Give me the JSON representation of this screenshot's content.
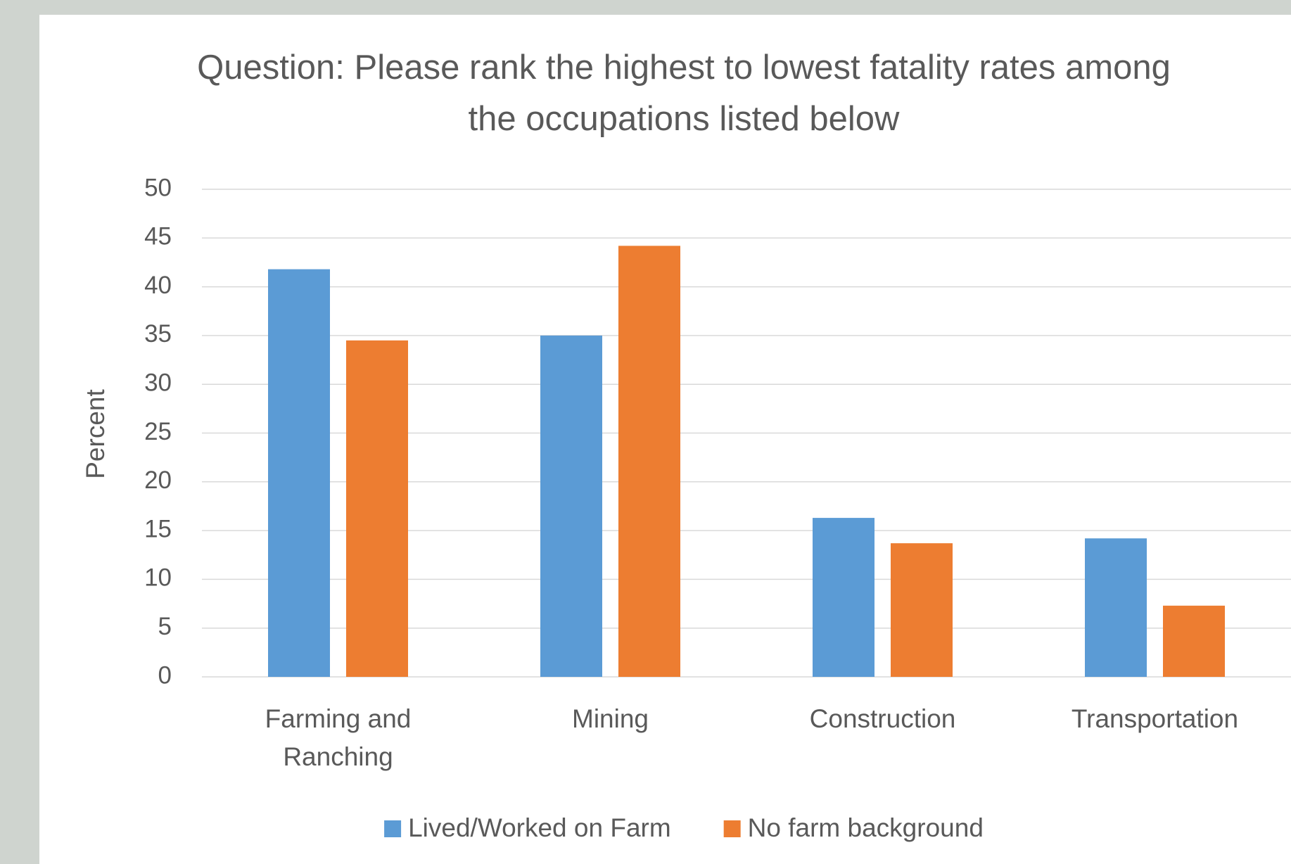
{
  "chart_data": {
    "type": "bar",
    "title": "Question: Please rank the highest to lowest fatality rates among the occupations listed below",
    "y_label": "Percent",
    "categories": [
      "Farming and Ranching",
      "Mining",
      "Construction",
      "Transportation"
    ],
    "series": [
      {
        "name": "Lived/Worked on Farm",
        "color": "#5b9bd5",
        "values": [
          41.8,
          35,
          16.3,
          14.2
        ]
      },
      {
        "name": "No farm background",
        "color": "#ed7d31",
        "values": [
          34.5,
          44.2,
          13.7,
          7.3
        ]
      }
    ],
    "ylim": [
      0,
      50
    ],
    "yticks": [
      0,
      5,
      10,
      15,
      20,
      25,
      30,
      35,
      40,
      45,
      50
    ],
    "grid": true,
    "legend": "bottom"
  }
}
